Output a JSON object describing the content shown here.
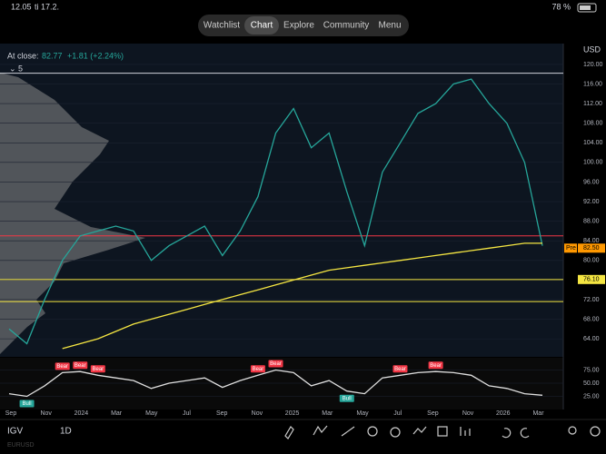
{
  "status_bar": {
    "time": "12.05",
    "date": "ti 17.2.",
    "battery": "78 %"
  },
  "nav": {
    "tabs": [
      "Watchlist",
      "Chart",
      "Explore",
      "Community",
      "Menu"
    ],
    "active": "Chart"
  },
  "header": {
    "close_label": "At close:",
    "close": "82.77",
    "change": "+1.81 (+2.24%)",
    "interval_menu": "5",
    "currency": "USD"
  },
  "chart_data": [
    {
      "type": "line",
      "ylim": [
        60.5,
        124.25
      ],
      "yticks": [
        {
          "value": 64,
          "label": "64.00"
        },
        {
          "value": 68,
          "label": "68.00"
        },
        {
          "value": 72,
          "label": "72.00"
        },
        {
          "value": 76,
          "label": "76.00"
        },
        {
          "value": 80,
          "label": "80.00"
        },
        {
          "value": 84,
          "label": "84.00"
        },
        {
          "value": 88,
          "label": "88.00"
        },
        {
          "value": 92,
          "label": "92.00"
        },
        {
          "value": 96,
          "label": "96.00"
        },
        {
          "value": 100,
          "label": "100.00"
        },
        {
          "value": 104,
          "label": "104.00"
        },
        {
          "value": 108,
          "label": "108.00"
        },
        {
          "value": 112,
          "label": "112.00"
        },
        {
          "value": 116,
          "label": "116.00"
        },
        {
          "value": 120,
          "label": "120.00"
        }
      ],
      "series": [
        {
          "name": "IGV",
          "color": "#26a69a",
          "values": [
            66,
            63,
            72,
            80,
            85,
            86,
            87,
            86,
            80,
            83,
            85,
            87,
            81,
            86,
            93,
            106,
            111,
            103,
            106,
            94,
            83,
            98,
            104,
            110,
            112,
            116,
            117,
            112,
            108,
            100,
            83
          ]
        },
        {
          "name": "MA",
          "color": "#f5e642",
          "values": [
            null,
            null,
            null,
            62,
            63,
            64,
            65.5,
            67,
            68,
            69,
            70,
            71,
            72,
            73,
            74,
            75,
            76,
            77,
            78,
            78.5,
            79,
            79.5,
            80,
            80.5,
            81,
            81.5,
            82,
            82.5,
            83,
            83.5,
            83.5
          ]
        }
      ],
      "levels": [
        {
          "value": 118.2,
          "color": "#d1d4dc"
        },
        {
          "value": 85,
          "color": "#f23645"
        },
        {
          "value": 76.1,
          "color": "#f5e642"
        },
        {
          "value": 71.6,
          "color": "#f5e642"
        }
      ],
      "price_tags": [
        {
          "value": 82.5,
          "label": "82.50",
          "prefix": "Pre",
          "color": "#ff9800"
        },
        {
          "value": 76.1,
          "label": "76.10",
          "color": "#f5e642"
        }
      ]
    },
    {
      "type": "line",
      "ylim": [
        0,
        100
      ],
      "yticks": [
        {
          "value": 25,
          "label": "25.00"
        },
        {
          "value": 50,
          "label": "50.00"
        },
        {
          "value": 75,
          "label": "75.00"
        }
      ],
      "series": [
        {
          "name": "RSI",
          "color": "#e0e0e0",
          "values": [
            30,
            25,
            45,
            70,
            72,
            65,
            60,
            55,
            40,
            50,
            55,
            60,
            42,
            55,
            65,
            75,
            70,
            45,
            55,
            35,
            30,
            60,
            65,
            70,
            72,
            70,
            65,
            45,
            40,
            30,
            27
          ]
        }
      ],
      "annotations": [
        {
          "label": "Bull",
          "index": 1
        },
        {
          "label": "Bear",
          "index": 3
        },
        {
          "label": "Bear",
          "index": 4
        },
        {
          "label": "Bear",
          "index": 5
        },
        {
          "label": "Bear",
          "index": 14
        },
        {
          "label": "Bear",
          "index": 15
        },
        {
          "label": "Bull",
          "index": 19
        },
        {
          "label": "Bear",
          "index": 22
        },
        {
          "label": "Bear",
          "index": 24
        }
      ],
      "x_labels": [
        "Sep",
        "Nov",
        "2024",
        "Mar",
        "May",
        "Jul",
        "Sep",
        "Nov",
        "2025",
        "Mar",
        "May",
        "Jul",
        "Sep",
        "Nov",
        "2026",
        "Mar"
      ]
    }
  ],
  "toolbar": {
    "symbol": "IGV",
    "interval": "1D",
    "watch": "EURUSD"
  }
}
